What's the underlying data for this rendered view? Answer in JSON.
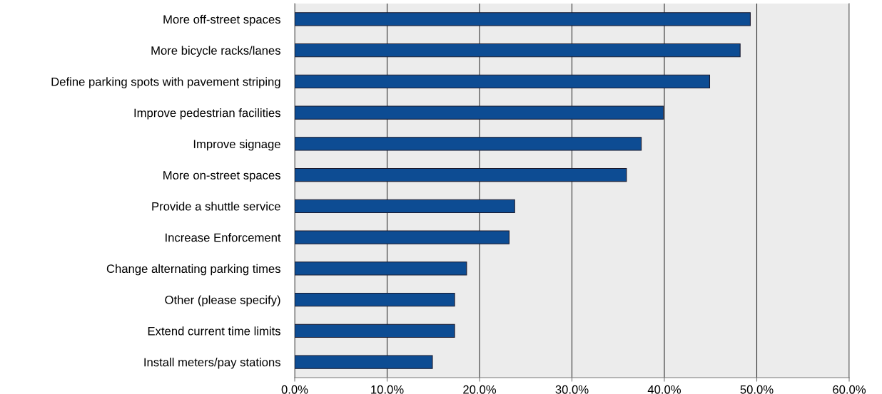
{
  "chart_data": {
    "type": "bar",
    "orientation": "horizontal",
    "categories": [
      "More off-street spaces",
      "More bicycle racks/lanes",
      "Define parking spots with pavement striping",
      "Improve pedestrian facilities",
      "Improve signage",
      "More on-street spaces",
      "Provide a shuttle service",
      "Increase Enforcement",
      "Change alternating parking times",
      "Other (please specify)",
      "Extend current time limits",
      "Install meters/pay stations"
    ],
    "values": [
      49.3,
      48.2,
      44.9,
      39.9,
      37.5,
      35.9,
      23.8,
      23.2,
      18.6,
      17.3,
      17.3,
      14.9
    ],
    "color": "#0d4c93",
    "xlim": [
      0,
      60
    ],
    "xticks": [
      {
        "value": 0,
        "label": "0.0%"
      },
      {
        "value": 10,
        "label": "10.0%"
      },
      {
        "value": 20,
        "label": "20.0%"
      },
      {
        "value": 30,
        "label": "30.0%"
      },
      {
        "value": 40,
        "label": "40.0%"
      },
      {
        "value": 50,
        "label": "50.0%"
      },
      {
        "value": 60,
        "label": "60.0%"
      }
    ],
    "grid": "x"
  }
}
